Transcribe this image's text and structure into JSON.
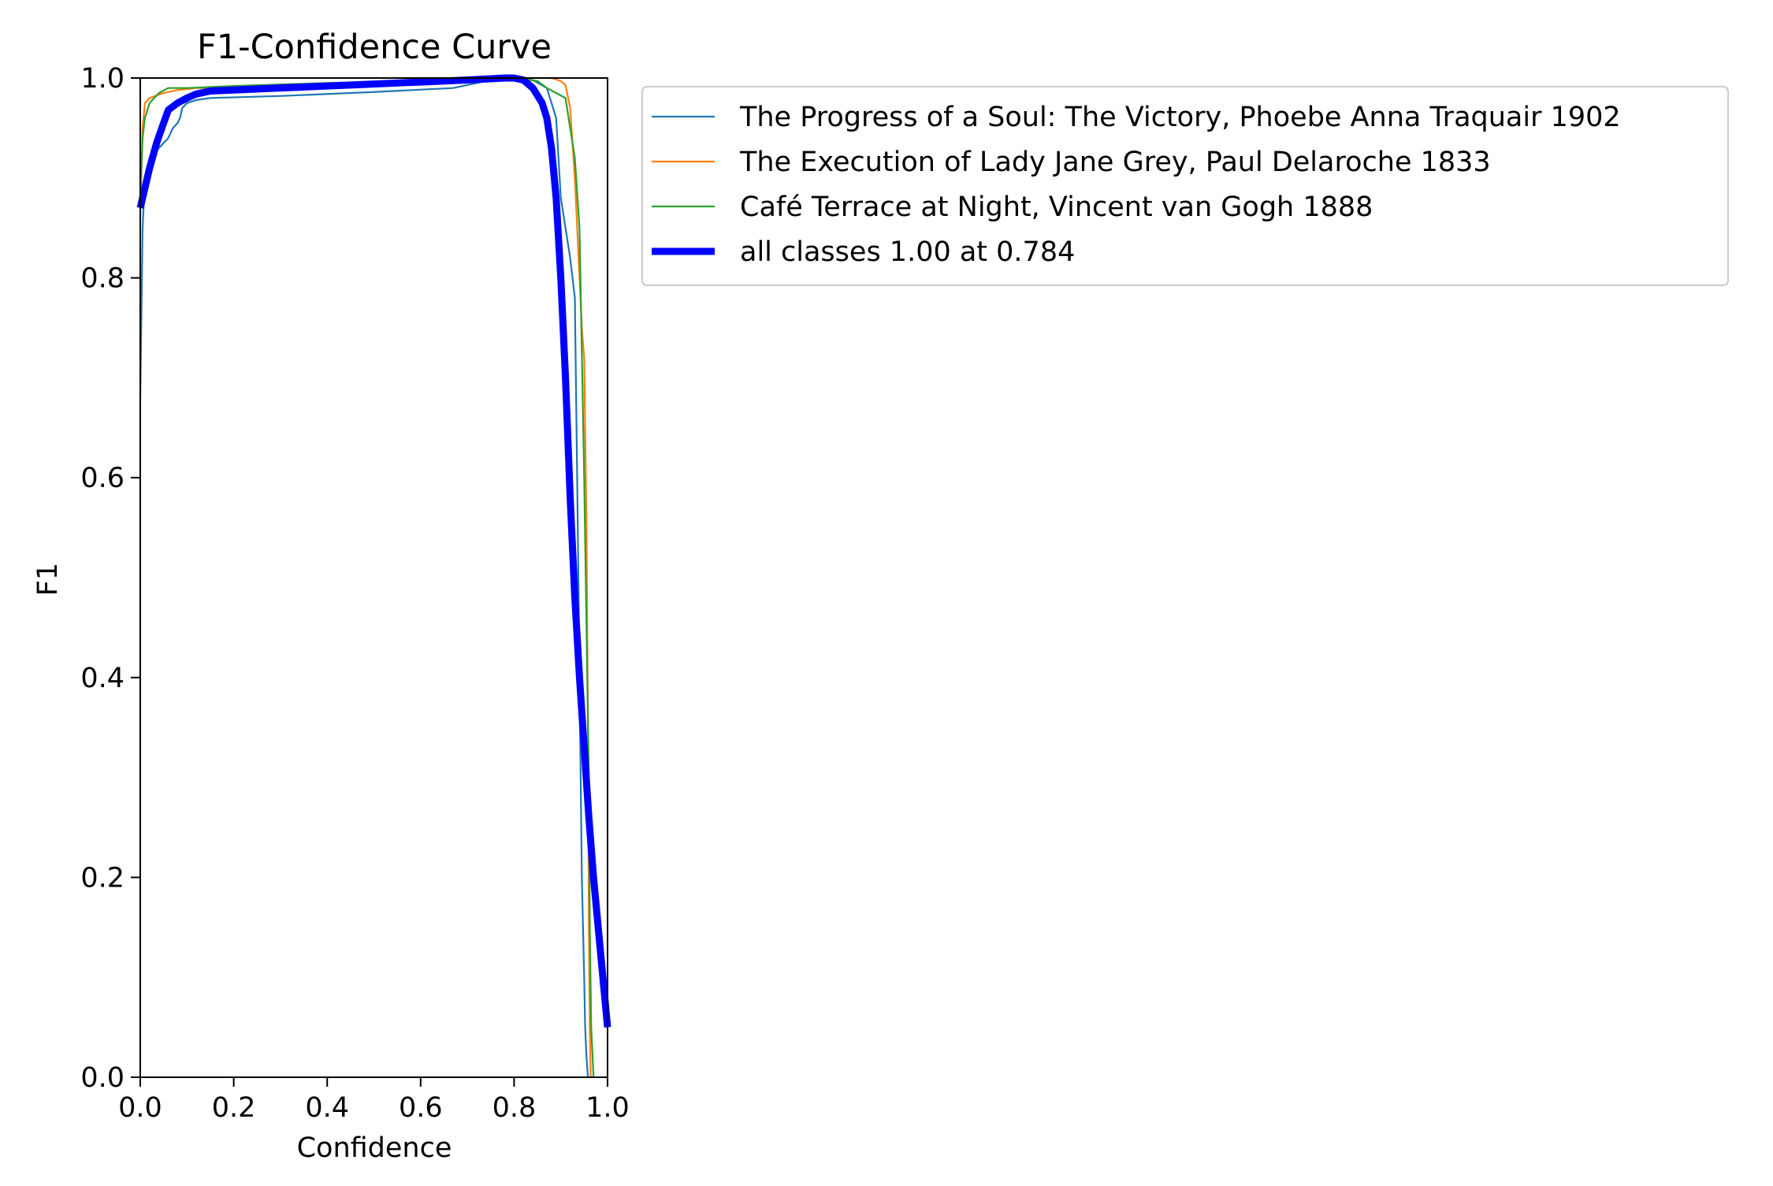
{
  "chart_data": {
    "type": "line",
    "title": "F1-Confidence Curve",
    "xlabel": "Confidence",
    "ylabel": "F1",
    "xlim": [
      0,
      1
    ],
    "ylim": [
      0,
      1
    ],
    "xticks": [
      "0.0",
      "0.2",
      "0.4",
      "0.6",
      "0.8",
      "1.0"
    ],
    "yticks": [
      "0.0",
      "0.2",
      "0.4",
      "0.6",
      "0.8",
      "1.0"
    ],
    "grid": false,
    "legend_position": "outside upper-right",
    "series": [
      {
        "name": "The Progress of a Soul: The Victory, Phoebe Anna Traquair 1902",
        "color": "#1f77b4",
        "line_width": "thin",
        "x": [
          0.0,
          0.005,
          0.01,
          0.02,
          0.04,
          0.06,
          0.07,
          0.08,
          0.085,
          0.09,
          0.1,
          0.12,
          0.15,
          0.3,
          0.5,
          0.67,
          0.75,
          0.8,
          0.84,
          0.87,
          0.89,
          0.9,
          0.91,
          0.92,
          0.93,
          0.935,
          0.94,
          0.945,
          0.95,
          0.952,
          0.955,
          0.958
        ],
        "y": [
          0.68,
          0.85,
          0.9,
          0.92,
          0.93,
          0.94,
          0.95,
          0.955,
          0.96,
          0.97,
          0.975,
          0.978,
          0.98,
          0.982,
          0.986,
          0.99,
          0.998,
          1.0,
          0.998,
          0.99,
          0.96,
          0.88,
          0.85,
          0.82,
          0.78,
          0.6,
          0.4,
          0.2,
          0.1,
          0.05,
          0.02,
          0.0
        ]
      },
      {
        "name": "The Execution of Lady Jane Grey, Paul Delaroche 1833",
        "color": "#ff7f0e",
        "line_width": "thin",
        "x": [
          0.0,
          0.005,
          0.01,
          0.02,
          0.05,
          0.08,
          0.12,
          0.2,
          0.4,
          0.6,
          0.8,
          0.85,
          0.88,
          0.9,
          0.91,
          0.92,
          0.93,
          0.94,
          0.945,
          0.95,
          0.955,
          0.958,
          0.96,
          0.962,
          0.964
        ],
        "y": [
          0.86,
          0.95,
          0.975,
          0.98,
          0.985,
          0.988,
          0.99,
          0.99,
          0.992,
          0.995,
          1.0,
          1.0,
          1.0,
          0.997,
          0.993,
          0.97,
          0.9,
          0.8,
          0.75,
          0.72,
          0.55,
          0.35,
          0.15,
          0.05,
          0.0
        ]
      },
      {
        "name": "Café Terrace at Night, Vincent van Gogh 1888",
        "color": "#2ca02c",
        "line_width": "thin",
        "x": [
          0.0,
          0.005,
          0.01,
          0.02,
          0.04,
          0.06,
          0.1,
          0.2,
          0.4,
          0.6,
          0.8,
          0.85,
          0.87,
          0.89,
          0.91,
          0.92,
          0.93,
          0.94,
          0.95,
          0.96,
          0.962,
          0.965,
          0.97
        ],
        "y": [
          0.88,
          0.94,
          0.96,
          0.975,
          0.985,
          0.99,
          0.99,
          0.992,
          0.995,
          0.997,
          1.0,
          0.997,
          0.99,
          0.985,
          0.98,
          0.95,
          0.92,
          0.85,
          0.6,
          0.3,
          0.15,
          0.05,
          0.0
        ]
      },
      {
        "name": "all classes 1.00 at 0.784",
        "color": "#0000ff",
        "line_width": "thick",
        "x": [
          0.0,
          0.01,
          0.02,
          0.035,
          0.05,
          0.06,
          0.08,
          0.1,
          0.12,
          0.15,
          0.2,
          0.3,
          0.4,
          0.5,
          0.6,
          0.7,
          0.78,
          0.8,
          0.82,
          0.84,
          0.86,
          0.87,
          0.88,
          0.89,
          0.9,
          0.91,
          0.92,
          0.93,
          0.94,
          0.95,
          0.96,
          0.97,
          0.98,
          0.99,
          1.0
        ],
        "y": [
          0.87,
          0.89,
          0.91,
          0.935,
          0.955,
          0.968,
          0.975,
          0.98,
          0.984,
          0.987,
          0.988,
          0.99,
          0.992,
          0.994,
          0.996,
          0.998,
          1.0,
          1.0,
          0.998,
          0.99,
          0.975,
          0.96,
          0.93,
          0.88,
          0.8,
          0.7,
          0.58,
          0.48,
          0.4,
          0.33,
          0.26,
          0.2,
          0.15,
          0.1,
          0.05
        ]
      }
    ]
  }
}
